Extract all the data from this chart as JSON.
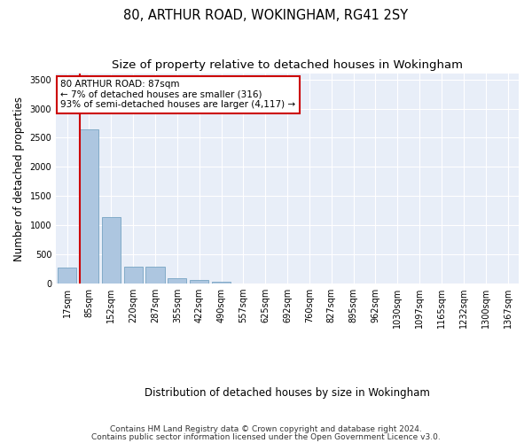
{
  "title": "80, ARTHUR ROAD, WOKINGHAM, RG41 2SY",
  "subtitle": "Size of property relative to detached houses in Wokingham",
  "xlabel": "Distribution of detached houses by size in Wokingham",
  "ylabel": "Number of detached properties",
  "categories": [
    "17sqm",
    "85sqm",
    "152sqm",
    "220sqm",
    "287sqm",
    "355sqm",
    "422sqm",
    "490sqm",
    "557sqm",
    "625sqm",
    "692sqm",
    "760sqm",
    "827sqm",
    "895sqm",
    "962sqm",
    "1030sqm",
    "1097sqm",
    "1165sqm",
    "1232sqm",
    "1300sqm",
    "1367sqm"
  ],
  "bar_values": [
    275,
    2640,
    1140,
    290,
    290,
    95,
    60,
    35,
    0,
    0,
    0,
    0,
    0,
    0,
    0,
    0,
    0,
    0,
    0,
    0,
    0
  ],
  "bar_color": "#adc6e0",
  "bar_edge_color": "#6699bb",
  "annotation_box_text": "80 ARTHUR ROAD: 87sqm\n← 7% of detached houses are smaller (316)\n93% of semi-detached houses are larger (4,117) →",
  "annotation_box_color": "#ffffff",
  "annotation_box_edge_color": "#cc0000",
  "vline_color": "#cc0000",
  "ylim": [
    0,
    3600
  ],
  "yticks": [
    0,
    500,
    1000,
    1500,
    2000,
    2500,
    3000,
    3500
  ],
  "background_color": "#e8eef8",
  "grid_color": "#ffffff",
  "footer_line1": "Contains HM Land Registry data © Crown copyright and database right 2024.",
  "footer_line2": "Contains public sector information licensed under the Open Government Licence v3.0.",
  "title_fontsize": 10.5,
  "subtitle_fontsize": 9.5,
  "axis_label_fontsize": 8.5,
  "tick_fontsize": 7,
  "footer_fontsize": 6.5,
  "annotation_fontsize": 7.5
}
